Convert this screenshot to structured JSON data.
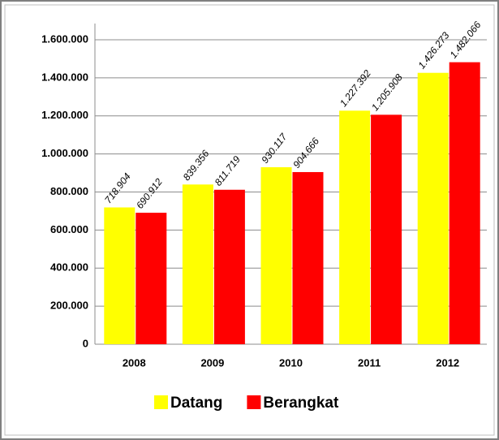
{
  "chart_data": {
    "type": "bar",
    "categories": [
      "2008",
      "2009",
      "2010",
      "2011",
      "2012"
    ],
    "series": [
      {
        "name": "Datang",
        "color": "#ffff00",
        "values": [
          718904,
          839356,
          930117,
          1227392,
          1426273
        ],
        "value_labels": [
          "718.904",
          "839.356",
          "930.117",
          "1.227.392",
          "1.426.273"
        ]
      },
      {
        "name": "Berangkat",
        "color": "#ff0000",
        "values": [
          690912,
          811719,
          904666,
          1205908,
          1482066
        ],
        "value_labels": [
          "690.912",
          "811.719",
          "904.666",
          "1.205.908",
          "1.482.066"
        ]
      }
    ],
    "ylim": [
      0,
      1600000
    ],
    "yticks": [
      0,
      {
        "value": 200000,
        "label": "200.000"
      },
      {
        "value": 400000,
        "label": "400.000"
      },
      {
        "value": 600000,
        "label": "600.000"
      },
      {
        "value": 800000,
        "label": "800.000"
      },
      {
        "value": 1000000,
        "label": "1.000.000"
      },
      {
        "value": 1200000,
        "label": "1.200.000"
      },
      {
        "value": 1400000,
        "label": "1.400.000"
      },
      {
        "value": 1600000,
        "label": "1.600.000"
      }
    ],
    "grid": true,
    "legend": "bottom"
  }
}
